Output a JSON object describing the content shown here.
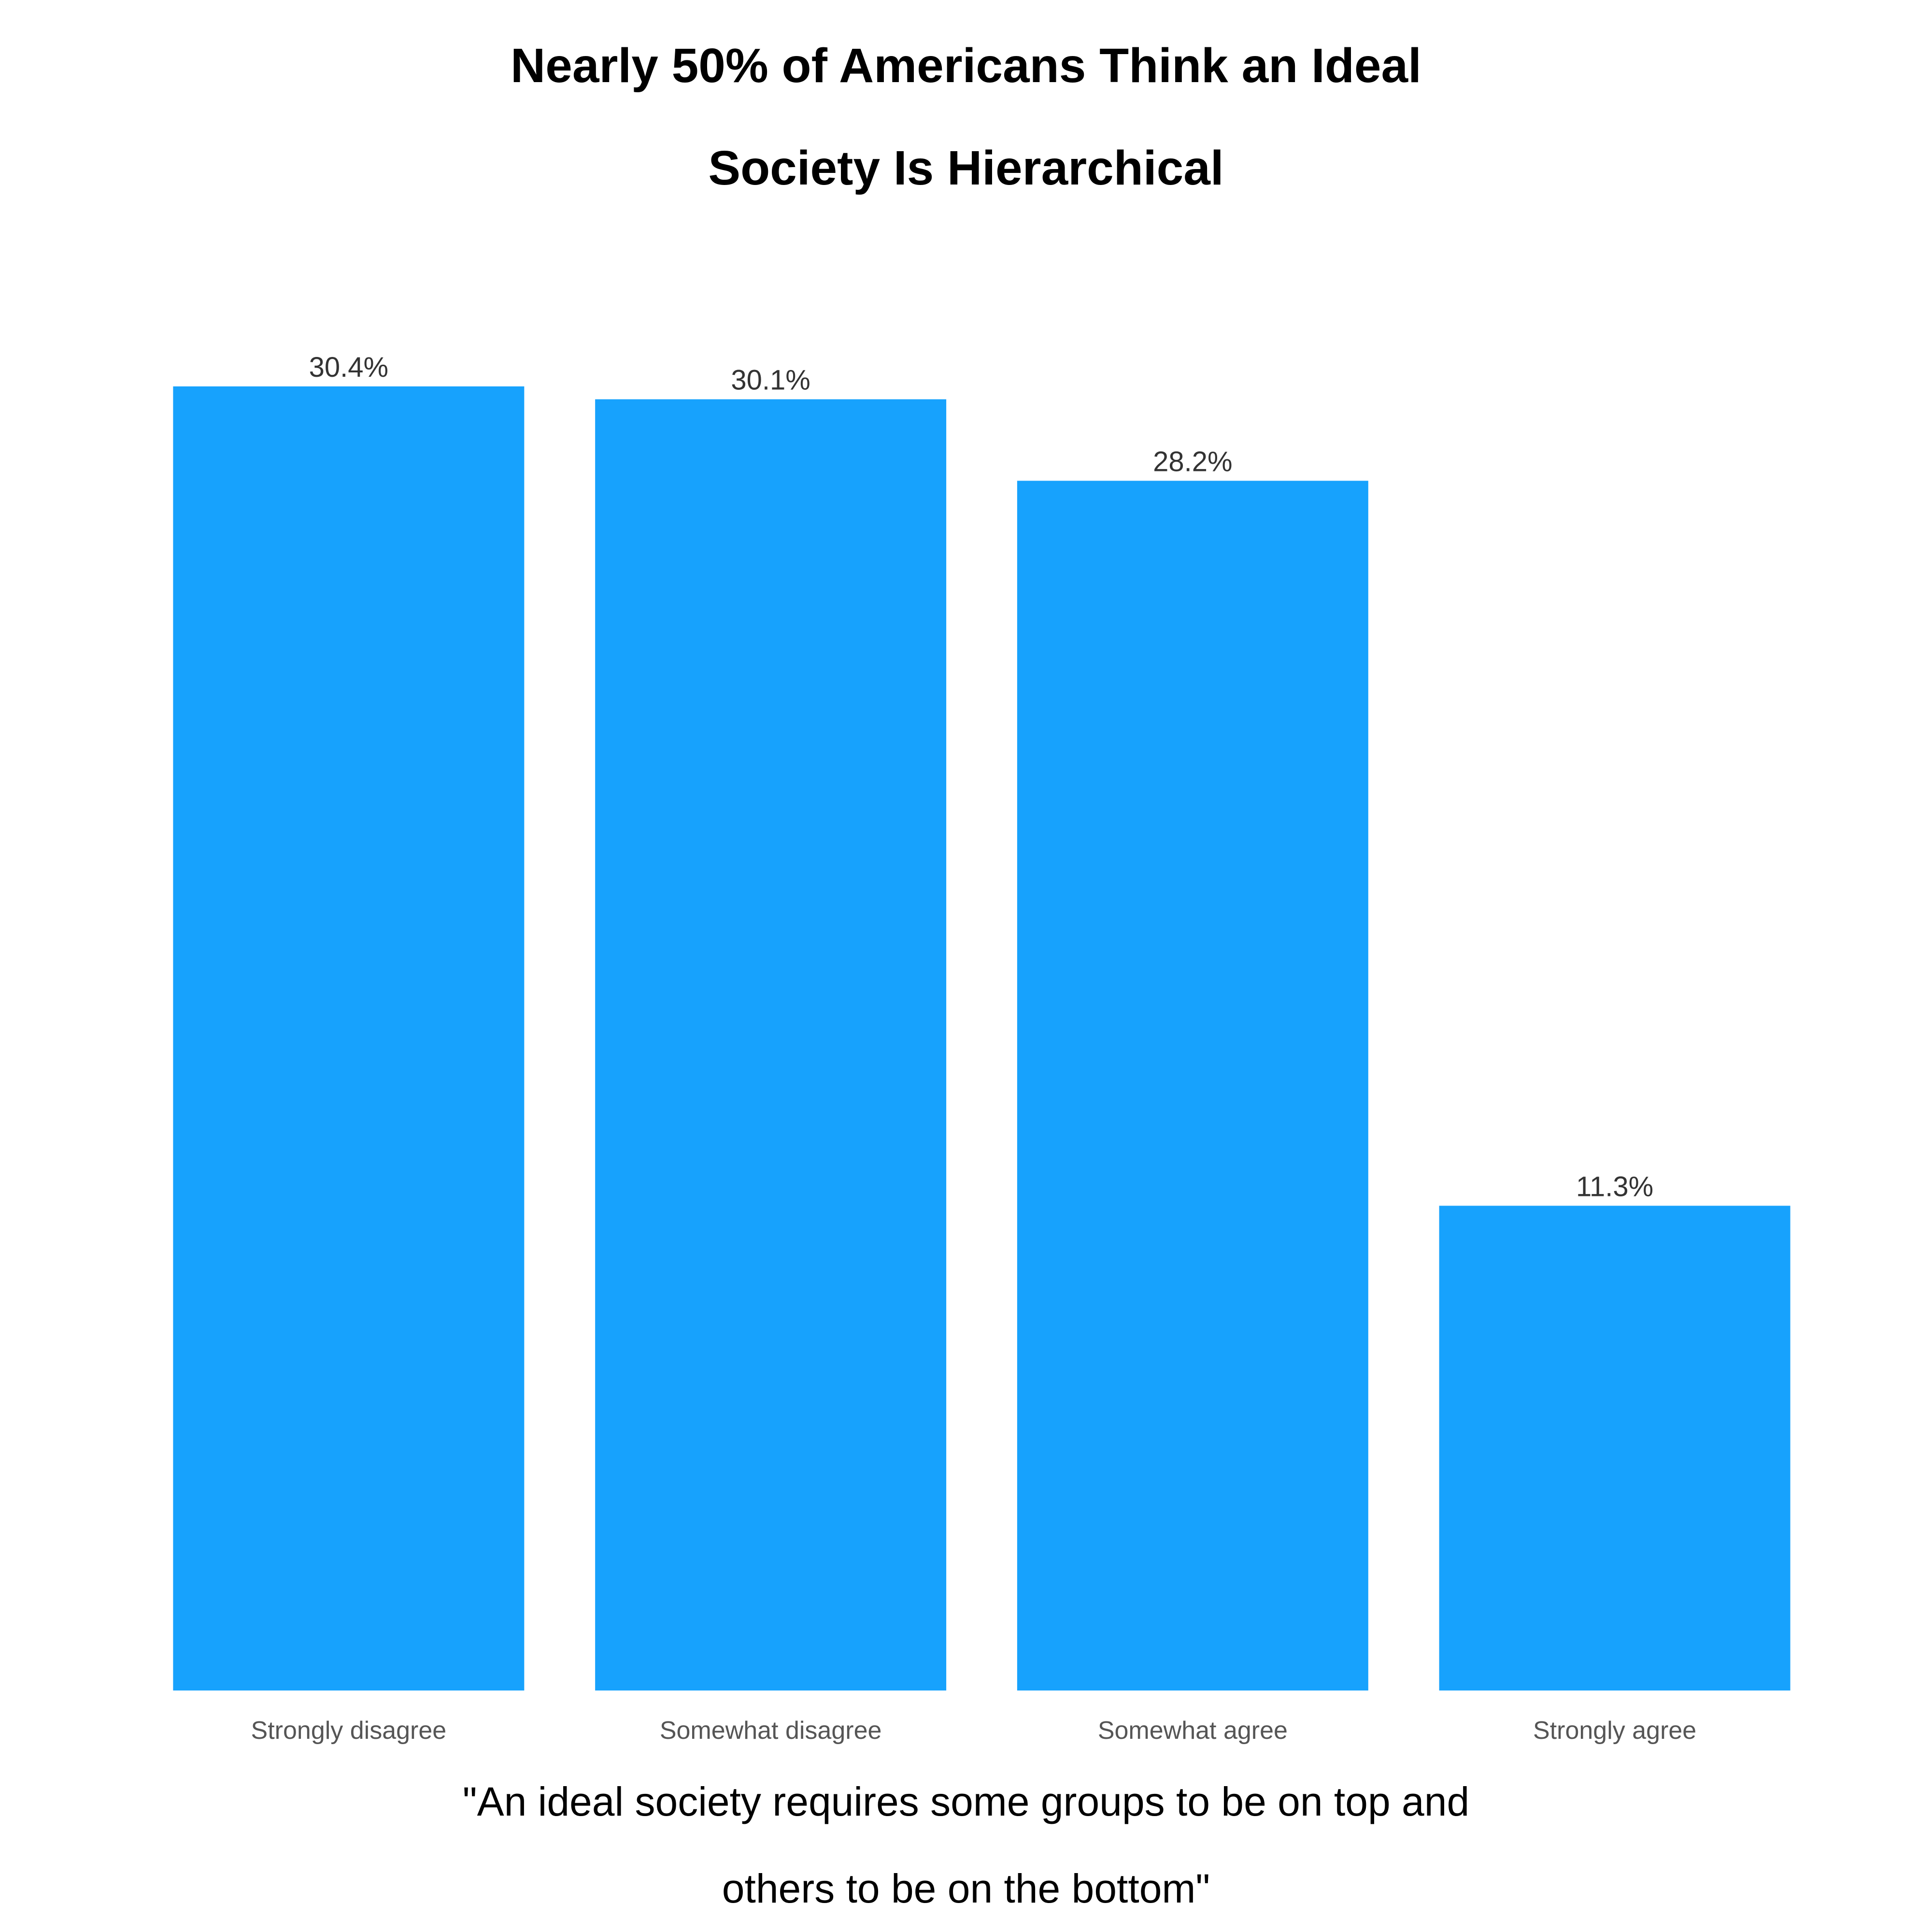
{
  "chart_data": {
    "type": "bar",
    "title_lines": [
      "Nearly 50% of Americans Think an Ideal",
      "Society Is Hierarchical"
    ],
    "caption_lines": [
      "\"An ideal society requires some groups to be on top and",
      "others to be on the bottom\""
    ],
    "categories": [
      "Strongly disagree",
      "Somewhat disagree",
      "Somewhat agree",
      "Strongly agree"
    ],
    "values": [
      30.4,
      30.1,
      28.2,
      11.3
    ],
    "value_labels": [
      "30.4%",
      "30.1%",
      "28.2%",
      "11.3%"
    ],
    "ylim": [
      0,
      30.4
    ],
    "grid": false,
    "legend": "none",
    "bar_color": "#17a2fd",
    "value_label_color": "#333333",
    "category_label_color": "#555555"
  }
}
